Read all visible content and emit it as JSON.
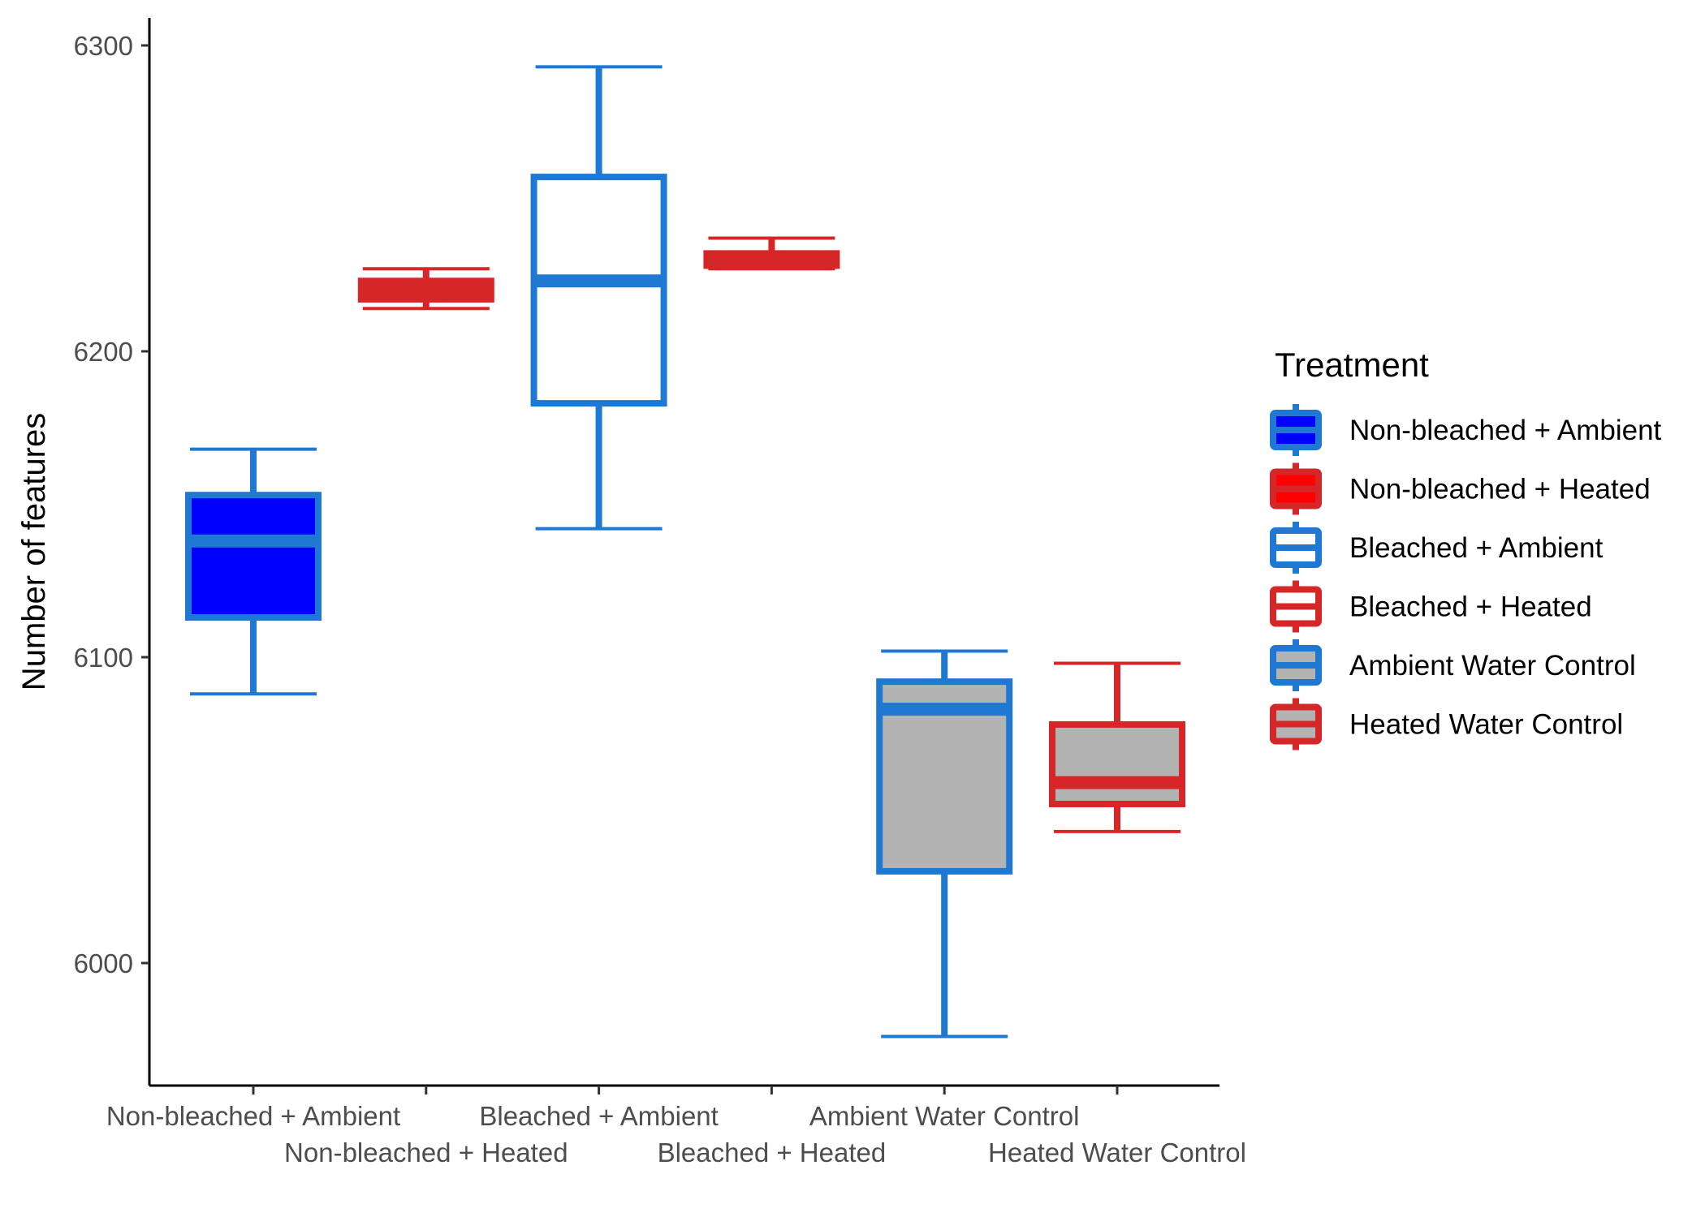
{
  "chart_data": {
    "type": "box",
    "ylabel": "Number of features",
    "xlabel": "",
    "ylim": [
      5960,
      6310
    ],
    "yticks": [
      6000,
      6100,
      6200,
      6300
    ],
    "grid": false,
    "legend": {
      "title": "Treatment",
      "position": "right"
    },
    "categories": [
      "Non-bleached + Ambient",
      "Non-bleached + Heated",
      "Bleached + Ambient",
      "Bleached + Heated",
      "Ambient Water Control",
      "Heated Water Control"
    ],
    "series": [
      {
        "name": "Non-bleached + Ambient",
        "min": 6088,
        "q1": 6113,
        "median": 6138,
        "q3": 6153,
        "max": 6168,
        "fill": "#0000ff",
        "stroke": "#1f78d1"
      },
      {
        "name": "Non-bleached + Heated",
        "min": 6214,
        "q1": 6217,
        "median": 6220,
        "q3": 6223,
        "max": 6227,
        "fill": "#ff0000",
        "stroke": "#d62728"
      },
      {
        "name": "Bleached + Ambient",
        "min": 6142,
        "q1": 6183,
        "median": 6223,
        "q3": 6257,
        "max": 6293,
        "fill": "#ffffff",
        "stroke": "#1f78d1"
      },
      {
        "name": "Bleached + Heated",
        "min": 6227,
        "q1": 6228,
        "median": 6230,
        "q3": 6232,
        "max": 6237,
        "fill": "#ffffff",
        "stroke": "#d62728"
      },
      {
        "name": "Ambient Water Control",
        "min": 5976,
        "q1": 6030,
        "median": 6083,
        "q3": 6092,
        "max": 6102,
        "fill": "#b3b3b3",
        "stroke": "#1f78d1"
      },
      {
        "name": "Heated Water Control",
        "min": 6043,
        "q1": 6052,
        "median": 6059,
        "q3": 6078,
        "max": 6098,
        "fill": "#b3b3b3",
        "stroke": "#d62728"
      }
    ]
  }
}
